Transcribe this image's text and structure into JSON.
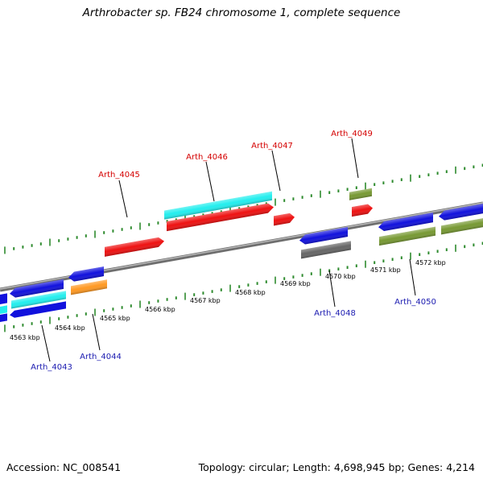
{
  "title": "Arthrobacter sp. FB24 chromosome 1, complete sequence",
  "footer": {
    "accession": "Accession: NC_008541",
    "summary": "Topology: circular; Length: 4,698,945 bp; Genes: 4,214"
  },
  "colors": {
    "background": "#ffffff",
    "backbone": "#8a8a8a",
    "ticks": "#2e8b2e",
    "forward_label": "#d40000",
    "reverse_label": "#1a1ab0",
    "red": "#ee1111",
    "cyan": "#22eeee",
    "blue": "#1111dd",
    "orange": "#ff9922",
    "olive": "#779933",
    "gray": "#666666"
  },
  "kbp_labels": [
    "4563 kbp",
    "4564 kbp",
    "4565 kbp",
    "4566 kbp",
    "4567 kbp",
    "4568 kbp",
    "4569 kbp",
    "4570 kbp",
    "4571 kbp",
    "4572 kbp"
  ],
  "forward_labels": [
    "Arth_4045",
    "Arth_4046",
    "Arth_4047",
    "Arth_4049"
  ],
  "reverse_labels": [
    "Arth_4043",
    "Arth_4044",
    "Arth_4048",
    "Arth_4050"
  ]
}
